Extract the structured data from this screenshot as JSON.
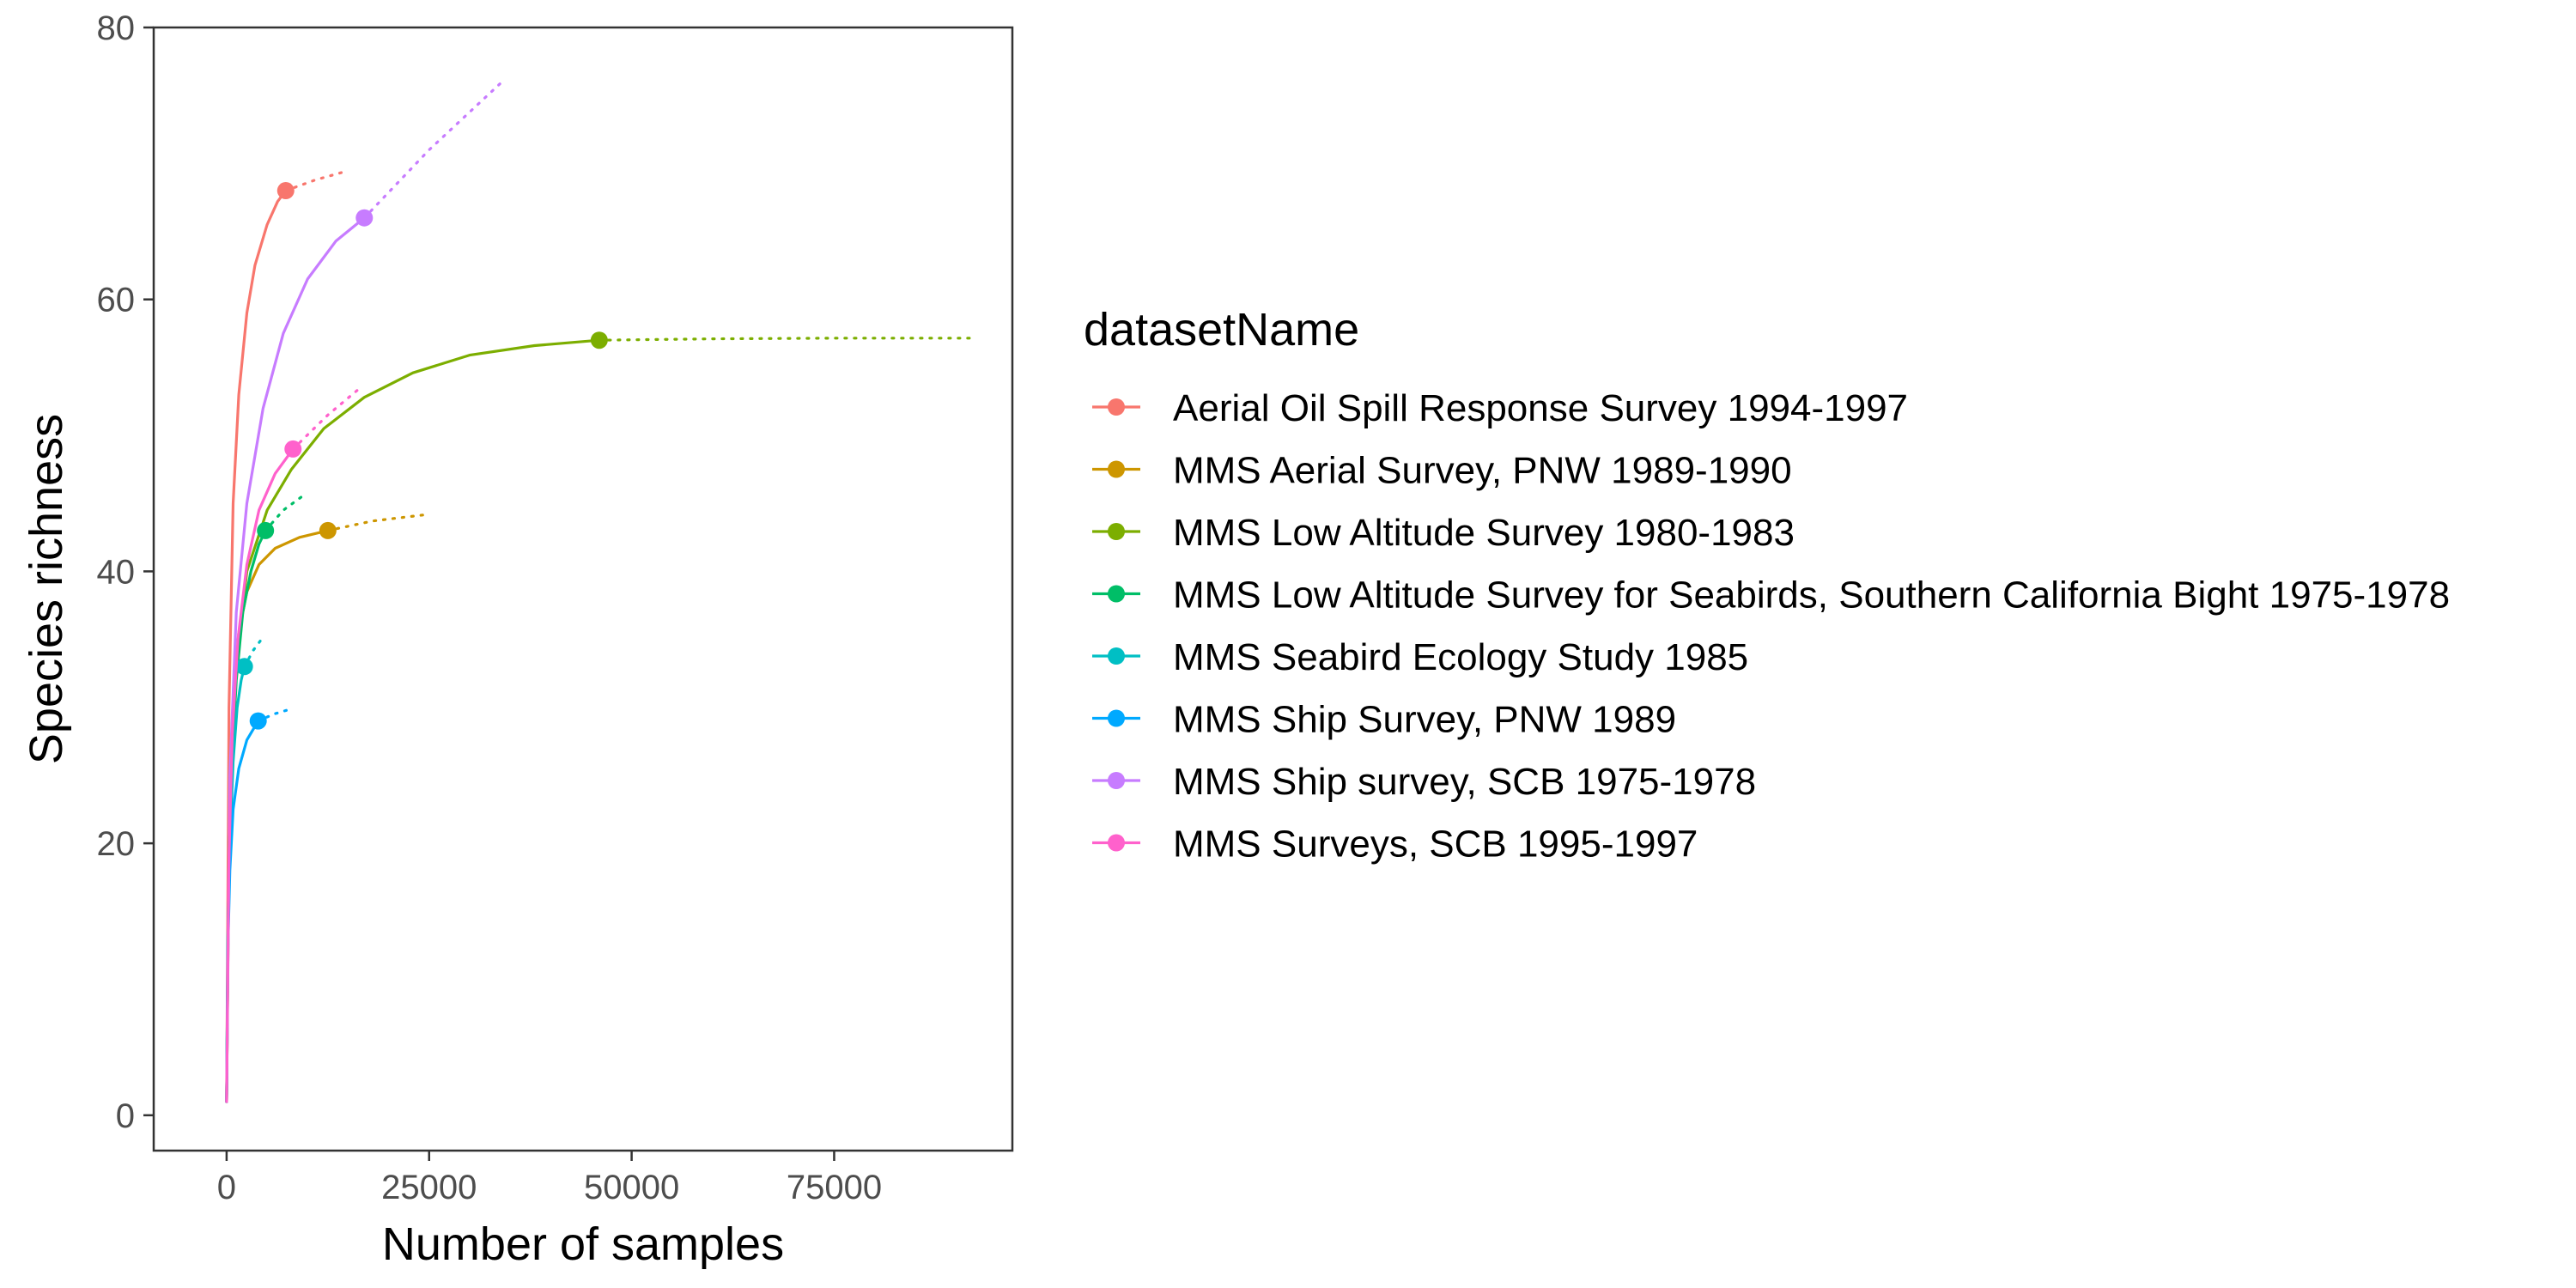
{
  "chart_data": {
    "type": "line",
    "title": "",
    "xlabel": "Number of samples",
    "ylabel": "Species richness",
    "xlim": [
      -9000,
      97000
    ],
    "ylim": [
      -2.6,
      80
    ],
    "x_ticks": [
      0,
      25000,
      50000,
      75000
    ],
    "x_tick_labels": [
      "0",
      "25000",
      "50000",
      "75000"
    ],
    "y_ticks": [
      0,
      20,
      40,
      60,
      80
    ],
    "y_tick_labels": [
      "0",
      "20",
      "40",
      "60",
      "80"
    ],
    "grid": false,
    "legend": {
      "title": "datasetName",
      "placement": "right"
    },
    "series": [
      {
        "name": "Aerial Oil Spill Response Survey 1994-1997",
        "color": "#F8766D",
        "observed": {
          "x": 7300,
          "y": 68
        },
        "interpolated": [
          [
            0,
            1
          ],
          [
            300,
            30
          ],
          [
            800,
            45
          ],
          [
            1500,
            53
          ],
          [
            2500,
            59
          ],
          [
            3500,
            62.5
          ],
          [
            5000,
            65.5
          ],
          [
            6300,
            67.2
          ],
          [
            7300,
            68
          ]
        ],
        "extrapolated": [
          [
            7300,
            68
          ],
          [
            11000,
            68.8
          ],
          [
            14600,
            69.4
          ]
        ]
      },
      {
        "name": "MMS Aerial Survey, PNW 1989-1990",
        "color": "#CD9600",
        "observed": {
          "x": 12500,
          "y": 43
        },
        "interpolated": [
          [
            0,
            1
          ],
          [
            300,
            20
          ],
          [
            800,
            30
          ],
          [
            1500,
            35.5
          ],
          [
            2500,
            38.5
          ],
          [
            4000,
            40.5
          ],
          [
            6000,
            41.7
          ],
          [
            9000,
            42.5
          ],
          [
            12500,
            43
          ]
        ],
        "extrapolated": [
          [
            12500,
            43
          ],
          [
            18000,
            43.7
          ],
          [
            25000,
            44.2
          ]
        ]
      },
      {
        "name": "MMS Low Altitude Survey 1980-1983",
        "color": "#7CAE00",
        "observed": {
          "x": 46000,
          "y": 57
        },
        "interpolated": [
          [
            0,
            1
          ],
          [
            300,
            20
          ],
          [
            1000,
            32
          ],
          [
            2500,
            40
          ],
          [
            5000,
            44.5
          ],
          [
            8000,
            47.5
          ],
          [
            12000,
            50.5
          ],
          [
            17000,
            52.8
          ],
          [
            23000,
            54.6
          ],
          [
            30000,
            55.9
          ],
          [
            38000,
            56.6
          ],
          [
            46000,
            57
          ]
        ],
        "extrapolated": [
          [
            46000,
            57
          ],
          [
            60000,
            57.1
          ],
          [
            75000,
            57.15
          ],
          [
            92000,
            57.15
          ]
        ]
      },
      {
        "name": "MMS Low Altitude Survey for Seabirds, Southern California Bight 1975-1978",
        "color": "#00BE67",
        "observed": {
          "x": 4800,
          "y": 43
        },
        "interpolated": [
          [
            0,
            1
          ],
          [
            200,
            15
          ],
          [
            600,
            25
          ],
          [
            1200,
            32
          ],
          [
            2000,
            37
          ],
          [
            3000,
            40
          ],
          [
            4000,
            42
          ],
          [
            4800,
            43
          ]
        ],
        "extrapolated": [
          [
            4800,
            43
          ],
          [
            7000,
            44.5
          ],
          [
            9300,
            45.5
          ]
        ]
      },
      {
        "name": "MMS Seabird Ecology Study 1985",
        "color": "#00BFC4",
        "observed": {
          "x": 2200,
          "y": 33
        },
        "interpolated": [
          [
            0,
            1
          ],
          [
            150,
            13
          ],
          [
            400,
            20
          ],
          [
            800,
            26
          ],
          [
            1300,
            30
          ],
          [
            1800,
            32
          ],
          [
            2200,
            33
          ]
        ],
        "extrapolated": [
          [
            2200,
            33
          ],
          [
            3300,
            34.2
          ],
          [
            4300,
            35
          ]
        ]
      },
      {
        "name": "MMS Ship Survey, PNW 1989",
        "color": "#00A9FF",
        "observed": {
          "x": 3900,
          "y": 29
        },
        "interpolated": [
          [
            0,
            1
          ],
          [
            150,
            12
          ],
          [
            400,
            18
          ],
          [
            800,
            22.5
          ],
          [
            1500,
            25.5
          ],
          [
            2500,
            27.6
          ],
          [
            3900,
            29
          ]
        ],
        "extrapolated": [
          [
            3900,
            29
          ],
          [
            5800,
            29.5
          ],
          [
            7500,
            29.8
          ]
        ]
      },
      {
        "name": "MMS Ship survey, SCB 1975-1978",
        "color": "#C77CFF",
        "observed": {
          "x": 17000,
          "y": 66
        },
        "interpolated": [
          [
            0,
            1
          ],
          [
            400,
            25
          ],
          [
            1200,
            37
          ],
          [
            2500,
            45
          ],
          [
            4500,
            52
          ],
          [
            7000,
            57.5
          ],
          [
            10000,
            61.5
          ],
          [
            13500,
            64.3
          ],
          [
            17000,
            66
          ]
        ],
        "extrapolated": [
          [
            17000,
            66
          ],
          [
            25000,
            71
          ],
          [
            34000,
            76
          ]
        ]
      },
      {
        "name": "MMS Surveys, SCB 1995-1997",
        "color": "#FF61CC",
        "observed": {
          "x": 8200,
          "y": 49
        },
        "interpolated": [
          [
            0,
            1
          ],
          [
            250,
            18
          ],
          [
            700,
            28
          ],
          [
            1400,
            35
          ],
          [
            2500,
            40.5
          ],
          [
            4000,
            44.5
          ],
          [
            6000,
            47.2
          ],
          [
            8200,
            49
          ]
        ],
        "extrapolated": [
          [
            8200,
            49
          ],
          [
            12500,
            51.5
          ],
          [
            16500,
            53.5
          ]
        ]
      }
    ]
  }
}
